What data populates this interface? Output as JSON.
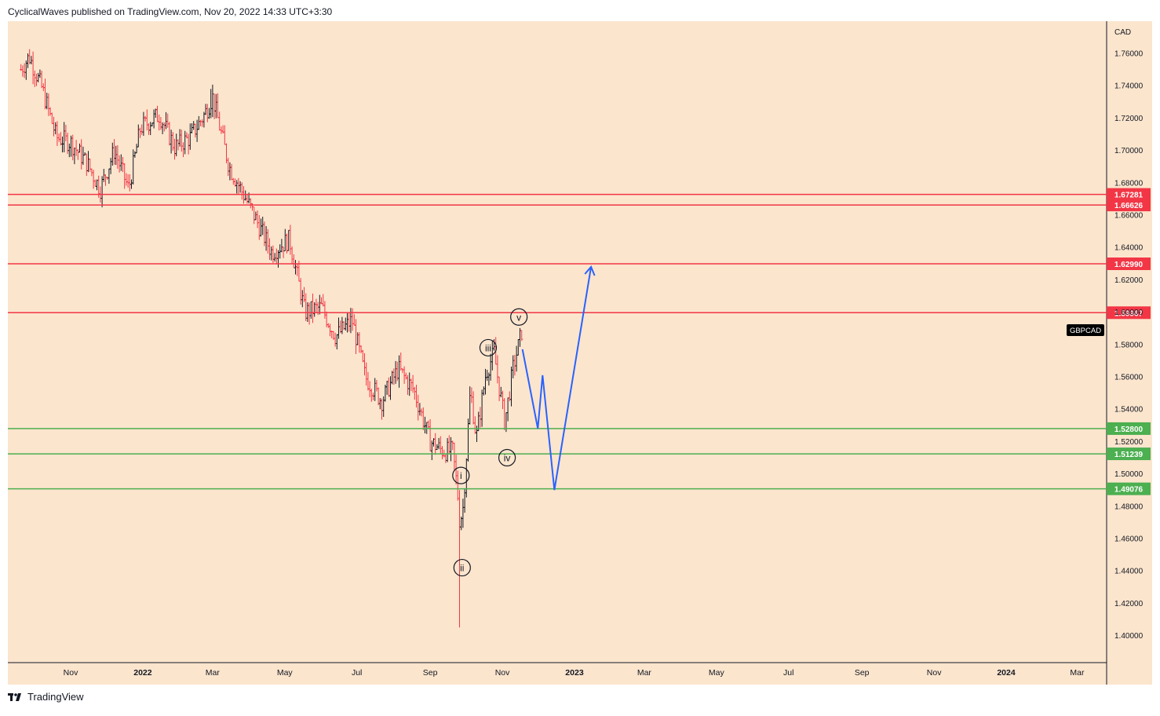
{
  "header": {
    "publish_line": "CyclicalWaves published on TradingView.com, Nov 20, 2022 14:33 UTC+3:30"
  },
  "footer": {
    "brand": "TradingView"
  },
  "colors": {
    "background": "#fbe5cd",
    "resistance": "#f23645",
    "support": "#4caf50",
    "projection": "#2962ff",
    "candle": "#131722",
    "candle_down": "#f23645"
  },
  "chart_data": {
    "type": "ohlc",
    "symbol_label": "GBPCAD",
    "currency_label": "CAD",
    "y_ticks": [
      "1.76000",
      "1.74000",
      "1.72000",
      "1.70000",
      "1.68000",
      "1.66000",
      "1.64000",
      "1.62000",
      "1.60000",
      "1.58000",
      "1.56000",
      "1.54000",
      "1.52000",
      "1.50000",
      "1.48000",
      "1.46000",
      "1.44000",
      "1.42000",
      "1.40000"
    ],
    "ylim": [
      1.385,
      1.787
    ],
    "x_ticks": [
      {
        "label": "Nov",
        "date": "2021-11-01",
        "bold": false
      },
      {
        "label": "2022",
        "date": "2022-01-01",
        "bold": true
      },
      {
        "label": "Mar",
        "date": "2022-03-01",
        "bold": false
      },
      {
        "label": "May",
        "date": "2022-05-01",
        "bold": false
      },
      {
        "label": "Jul",
        "date": "2022-07-01",
        "bold": false
      },
      {
        "label": "Sep",
        "date": "2022-09-01",
        "bold": false
      },
      {
        "label": "Nov",
        "date": "2022-11-01",
        "bold": false
      },
      {
        "label": "2023",
        "date": "2023-01-01",
        "bold": true
      },
      {
        "label": "Mar",
        "date": "2023-03-01",
        "bold": false
      },
      {
        "label": "May",
        "date": "2023-05-01",
        "bold": false
      },
      {
        "label": "Jul",
        "date": "2023-07-01",
        "bold": false
      },
      {
        "label": "Sep",
        "date": "2023-09-01",
        "bold": false
      },
      {
        "label": "Nov",
        "date": "2023-11-01",
        "bold": false
      },
      {
        "label": "2024",
        "date": "2024-01-01",
        "bold": true
      },
      {
        "label": "Mar",
        "date": "2024-03-01",
        "bold": false
      }
    ],
    "horizontal_levels": [
      {
        "value": 1.67281,
        "label": "1.67281",
        "kind": "resistance"
      },
      {
        "value": 1.66626,
        "label": "1.66626",
        "kind": "resistance"
      },
      {
        "value": 1.6299,
        "label": "1.62990",
        "kind": "resistance"
      },
      {
        "value": 1.59967,
        "label": "1.59967",
        "kind": "resistance"
      },
      {
        "value": 1.528,
        "label": "1.52800",
        "kind": "support"
      },
      {
        "value": 1.51239,
        "label": "1.51239",
        "kind": "support"
      },
      {
        "value": 1.49076,
        "label": "1.49076",
        "kind": "support"
      }
    ],
    "price_path": [
      [
        "2021-09-20",
        1.75
      ],
      [
        "2021-09-27",
        1.758
      ],
      [
        "2021-10-08",
        1.738
      ],
      [
        "2021-10-20",
        1.708
      ],
      [
        "2021-11-01",
        1.705
      ],
      [
        "2021-11-15",
        1.692
      ],
      [
        "2021-11-26",
        1.676
      ],
      [
        "2021-12-08",
        1.7
      ],
      [
        "2021-12-20",
        1.676
      ],
      [
        "2021-12-30",
        1.714
      ],
      [
        "2022-01-15",
        1.722
      ],
      [
        "2022-01-28",
        1.702
      ],
      [
        "2022-02-10",
        1.708
      ],
      [
        "2022-02-22",
        1.722
      ],
      [
        "2022-03-01",
        1.733
      ],
      [
        "2022-03-15",
        1.69
      ],
      [
        "2022-04-01",
        1.666
      ],
      [
        "2022-04-20",
        1.637
      ],
      [
        "2022-05-05",
        1.645
      ],
      [
        "2022-05-18",
        1.6
      ],
      [
        "2022-06-01",
        1.603
      ],
      [
        "2022-06-13",
        1.585
      ],
      [
        "2022-06-27",
        1.595
      ],
      [
        "2022-07-08",
        1.56
      ],
      [
        "2022-07-22",
        1.545
      ],
      [
        "2022-08-05",
        1.565
      ],
      [
        "2022-08-18",
        1.552
      ],
      [
        "2022-09-01",
        1.52
      ],
      [
        "2022-09-12",
        1.514
      ],
      [
        "2022-09-20",
        1.514
      ],
      [
        "2022-09-24",
        1.49
      ],
      [
        "2022-09-26",
        1.47
      ],
      [
        "2022-09-29",
        1.48
      ],
      [
        "2022-10-05",
        1.552
      ],
      [
        "2022-10-10",
        1.522
      ],
      [
        "2022-10-18",
        1.562
      ],
      [
        "2022-10-25",
        1.575
      ],
      [
        "2022-10-28",
        1.56
      ],
      [
        "2022-11-03",
        1.532
      ],
      [
        "2022-11-10",
        1.565
      ],
      [
        "2022-11-18",
        1.59
      ]
    ],
    "candle_extremes": [
      {
        "date": "2022-09-26",
        "low": 1.405
      },
      {
        "date": "2021-09-27",
        "high": 1.76
      },
      {
        "date": "2022-02-28",
        "high": 1.738
      }
    ],
    "wave_labels": [
      {
        "text": "i",
        "date": "2022-09-27",
        "value": 1.499
      },
      {
        "text": "ii",
        "date": "2022-09-28",
        "value": 1.442
      },
      {
        "text": "iii",
        "date": "2022-10-20",
        "value": 1.578
      },
      {
        "text": "iv",
        "date": "2022-11-05",
        "value": 1.51
      },
      {
        "text": "v",
        "date": "2022-11-15",
        "value": 1.597
      }
    ],
    "projection_path": [
      [
        "2022-11-18",
        1.577
      ],
      [
        "2022-12-01",
        1.528
      ],
      [
        "2022-12-05",
        1.561
      ],
      [
        "2022-12-15",
        1.49
      ],
      [
        "2023-01-15",
        1.628
      ]
    ]
  }
}
